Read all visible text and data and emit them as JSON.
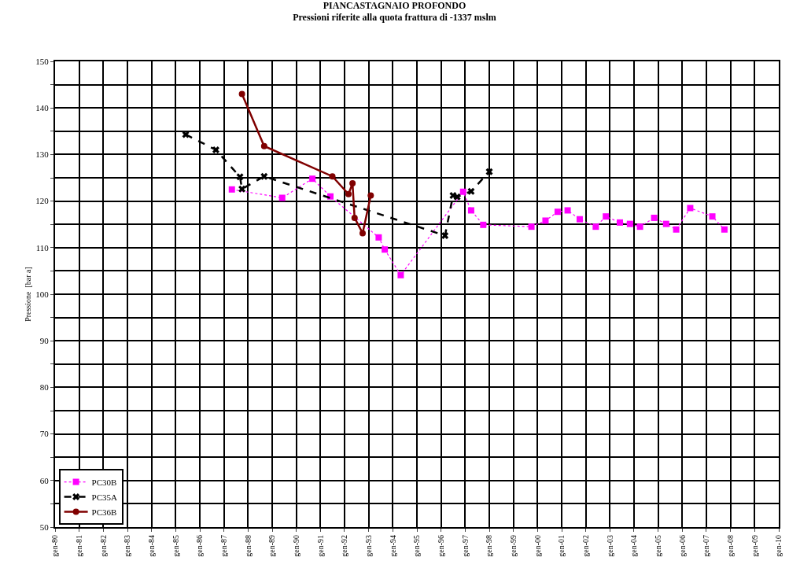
{
  "chart_data": {
    "type": "line",
    "title": "PIANCASTAGNAIO PROFONDO",
    "subtitle": "Pressioni riferite alla quota frattura di -1337 mslm",
    "ylabel": "Pressione  [bar a]",
    "xlim": [
      "1980-01-01",
      "2010-01-01"
    ],
    "xticks": [
      {
        "value": "1980-01-01",
        "label": "gen-80"
      },
      {
        "value": "1981-01-01",
        "label": "gen-81"
      },
      {
        "value": "1982-01-01",
        "label": "gen-82"
      },
      {
        "value": "1983-01-01",
        "label": "gen-83"
      },
      {
        "value": "1984-01-01",
        "label": "gen-84"
      },
      {
        "value": "1985-01-01",
        "label": "gen-85"
      },
      {
        "value": "1986-01-01",
        "label": "gen-86"
      },
      {
        "value": "1987-01-01",
        "label": "gen-87"
      },
      {
        "value": "1988-01-01",
        "label": "gen-88"
      },
      {
        "value": "1989-01-01",
        "label": "gen-89"
      },
      {
        "value": "1990-01-01",
        "label": "gen-90"
      },
      {
        "value": "1991-01-01",
        "label": "gen-91"
      },
      {
        "value": "1992-01-01",
        "label": "gen-92"
      },
      {
        "value": "1993-01-01",
        "label": "gen-93"
      },
      {
        "value": "1994-01-01",
        "label": "gen-94"
      },
      {
        "value": "1995-01-01",
        "label": "gen-95"
      },
      {
        "value": "1996-01-01",
        "label": "gen-96"
      },
      {
        "value": "1997-01-01",
        "label": "gen-97"
      },
      {
        "value": "1998-01-01",
        "label": "gen-98"
      },
      {
        "value": "1999-01-01",
        "label": "gen-99"
      },
      {
        "value": "2000-01-01",
        "label": "gen-00"
      },
      {
        "value": "2001-01-01",
        "label": "gen-01"
      },
      {
        "value": "2002-01-01",
        "label": "gen-02"
      },
      {
        "value": "2003-01-01",
        "label": "gen-03"
      },
      {
        "value": "2004-01-01",
        "label": "gen-04"
      },
      {
        "value": "2005-01-01",
        "label": "gen-05"
      },
      {
        "value": "2006-01-01",
        "label": "gen-06"
      },
      {
        "value": "2007-01-01",
        "label": "gen-07"
      },
      {
        "value": "2008-01-01",
        "label": "gen-08"
      },
      {
        "value": "2009-01-01",
        "label": "gen-09"
      },
      {
        "value": "2010-01-01",
        "label": "gen-10"
      }
    ],
    "ylim": [
      50,
      150
    ],
    "yticks": [
      50,
      {
        "value": 55,
        "label": null
      },
      60,
      {
        "value": 65,
        "label": null
      },
      70,
      {
        "value": 75,
        "label": null
      },
      80,
      {
        "value": 85,
        "label": null
      },
      90,
      {
        "value": 95,
        "label": null
      },
      100,
      {
        "value": 105,
        "label": null
      },
      110,
      {
        "value": 115,
        "label": null
      },
      120,
      {
        "value": 125,
        "label": null
      },
      130,
      {
        "value": 135,
        "label": null
      },
      140,
      {
        "value": 145,
        "label": null
      },
      150
    ],
    "grid": true,
    "legend": "bottom left",
    "series": [
      {
        "name": "PC30B",
        "color": "#ff00ff",
        "marker": "square",
        "line_style": "dotted",
        "x": [
          "1987-05",
          "1989-06",
          "1990-09",
          "1991-06",
          "1993-06",
          "1993-09",
          "1994-05",
          "1996-12",
          "1997-04",
          "1997-10",
          "1999-10",
          "2000-05",
          "2000-11",
          "2001-04",
          "2001-10",
          "2002-06",
          "2002-11",
          "2003-06",
          "2003-11",
          "2004-04",
          "2004-11",
          "2005-05",
          "2005-10",
          "2006-05",
          "2007-04",
          "2007-10"
        ],
        "values": [
          122.5,
          120.7,
          124.8,
          121.0,
          112.2,
          109.6,
          104.1,
          122.0,
          118.0,
          114.9,
          114.5,
          115.8,
          117.7,
          118.0,
          116.1,
          114.5,
          116.7,
          115.4,
          115.1,
          114.5,
          116.4,
          115.1,
          113.9,
          118.5,
          116.7,
          113.9
        ]
      },
      {
        "name": "PC35A",
        "color": "#000000",
        "marker": "cross",
        "line_style": "dashed",
        "x": [
          "1985-06",
          "1986-09",
          "1987-09",
          "1987-10",
          "1988-09",
          "1996-03",
          "1996-07",
          "1996-09",
          "1997-04",
          "1998-01"
        ],
        "values": [
          134.3,
          131.0,
          125.2,
          122.6,
          125.3,
          112.6,
          121.2,
          120.9,
          122.1,
          126.3
        ]
      },
      {
        "name": "PC36B",
        "color": "#800000",
        "marker": "circle",
        "line_style": "solid",
        "x": [
          "1987-10",
          "1988-09",
          "1991-07",
          "1992-03",
          "1992-05",
          "1992-06",
          "1992-10",
          "1993-02"
        ],
        "values": [
          143.0,
          131.8,
          125.3,
          121.5,
          123.8,
          116.4,
          113.1,
          121.2
        ]
      }
    ]
  }
}
